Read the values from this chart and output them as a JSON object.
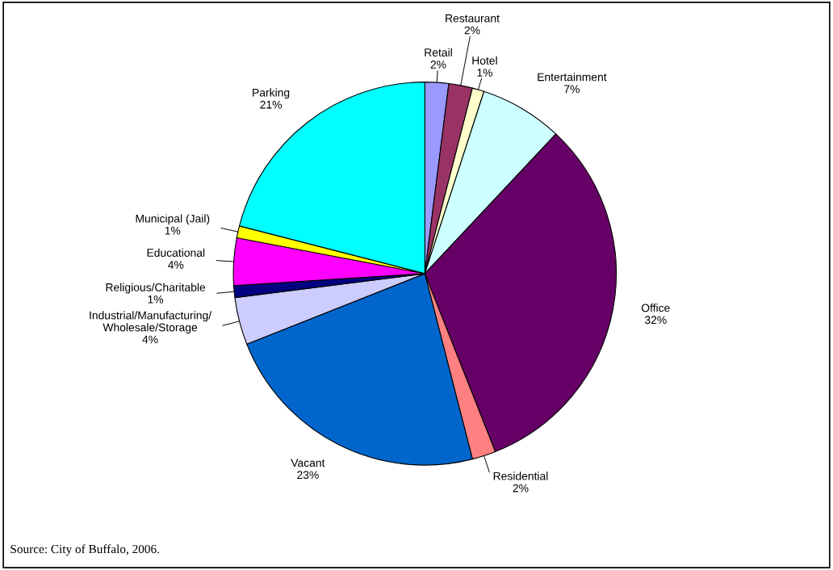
{
  "chart_data": {
    "type": "pie",
    "categories": [
      "Retail",
      "Restaurant",
      "Hotel",
      "Entertainment",
      "Office",
      "Residential",
      "Vacant",
      "Industrial/Manufacturing/\nWholesale/Storage",
      "Religious/Charitable",
      "Educational",
      "Municipal (Jail)",
      "Parking"
    ],
    "values": [
      2,
      2,
      1,
      7,
      32,
      2,
      23,
      4,
      1,
      4,
      1,
      21
    ],
    "colors": [
      "#9999ff",
      "#993366",
      "#ffffcc",
      "#ccffff",
      "#660066",
      "#ff8080",
      "#0066cc",
      "#ccccff",
      "#000080",
      "#ff00ff",
      "#ffff00",
      "#00ffff"
    ],
    "value_labels": [
      "2%",
      "2%",
      "1%",
      "7%",
      "32%",
      "2%",
      "23%",
      "4%",
      "1%",
      "4%",
      "1%",
      "21%"
    ],
    "annotations": [
      "Source: City of Buffalo, 2006."
    ],
    "legend": false
  }
}
